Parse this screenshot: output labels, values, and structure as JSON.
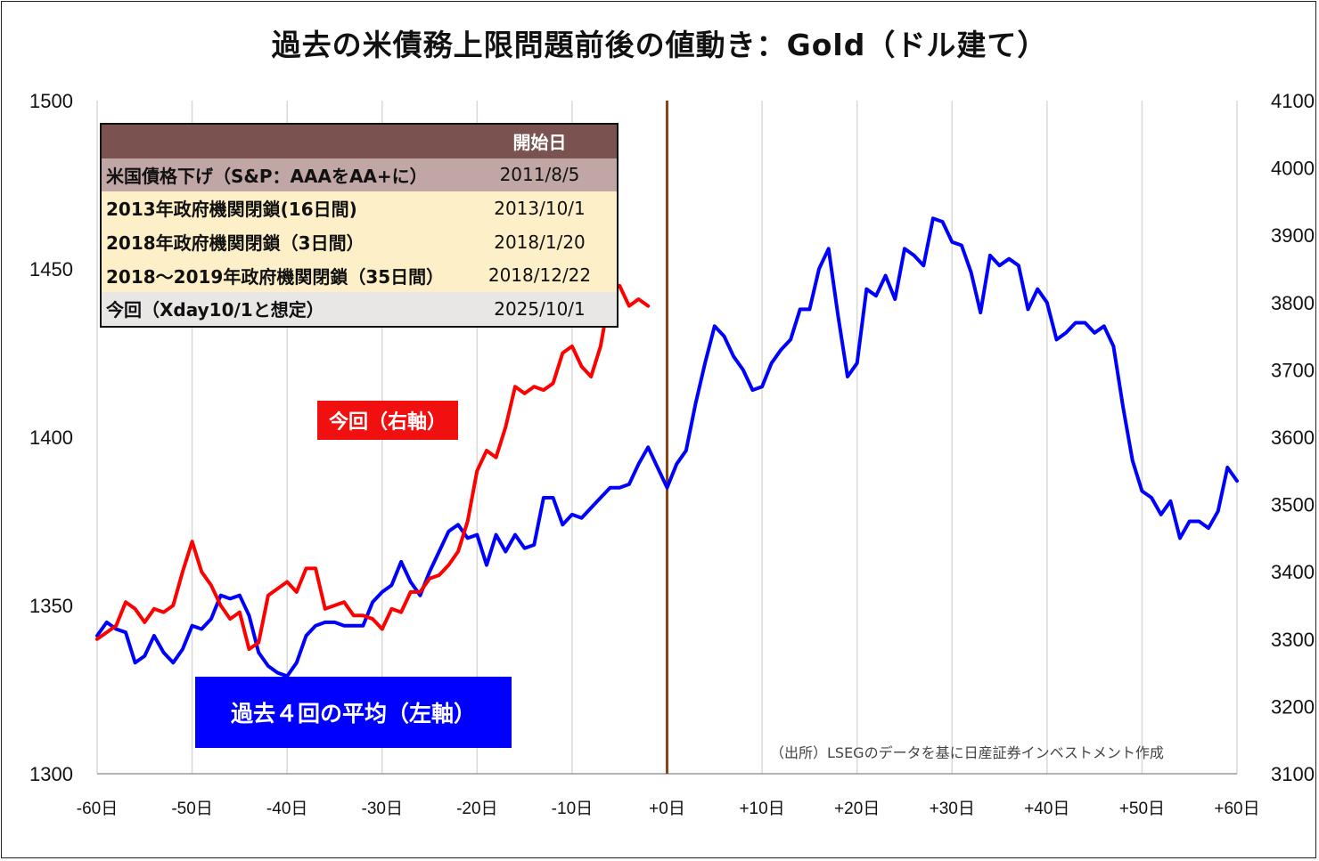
{
  "title": "過去の米債務上限問題前後の値動き：Gold（ドル建て）",
  "source": "（出所）LSEGのデータを基に日産証券インベストメント作成",
  "table": {
    "header": [
      "",
      "開始日"
    ],
    "rows": [
      {
        "event": "米国債格下げ（S&P：AAAをAA+に）",
        "date": "2011/8/5"
      },
      {
        "event": "2013年政府機関閉鎖(16日間)",
        "date": "2013/10/1"
      },
      {
        "event": "2018年政府機関閉鎖（3日間）",
        "date": "2018/1/20"
      },
      {
        "event": "2018～2019年政府機関閉鎖（35日間）",
        "date": "2018/12/22"
      },
      {
        "event": "今回（Xday10/1と想定）",
        "date": "2025/10/1"
      }
    ]
  },
  "labels": {
    "current": "今回（右軸）",
    "past": "過去４回の平均（左軸）"
  },
  "colors": {
    "current": "#ff0000",
    "past": "#0000ff",
    "vline": "#8b4513",
    "grid": "#d9d9d9"
  },
  "chart_data": {
    "type": "line",
    "x_ticks": [
      "-60日",
      "-50日",
      "-40日",
      "-30日",
      "-20日",
      "-10日",
      "+0日",
      "+10日",
      "+20日",
      "+30日",
      "+40日",
      "+50日",
      "+60日"
    ],
    "xlim": [
      -60,
      60
    ],
    "y_left": {
      "ticks": [
        "1300",
        "1350",
        "1400",
        "1450",
        "1500"
      ],
      "lim": [
        1300,
        1500
      ]
    },
    "y_right": {
      "ticks": [
        "3100",
        "3200",
        "3300",
        "3400",
        "3500",
        "3600",
        "3700",
        "3800",
        "3900",
        "4000",
        "4100"
      ],
      "lim": [
        3100,
        4100
      ]
    },
    "vertical_line_x": 0,
    "grid": "vertical",
    "series": [
      {
        "name": "過去４回の平均（左軸）",
        "axis": "left",
        "x_start": -60,
        "values": [
          1341,
          1345,
          1343,
          1342,
          1333,
          1335,
          1341,
          1336,
          1333,
          1337,
          1344,
          1343,
          1346,
          1353,
          1352,
          1353,
          1347,
          1336,
          1332,
          1330,
          1329,
          1333,
          1341,
          1344,
          1345,
          1345,
          1344,
          1344,
          1344,
          1351,
          1354,
          1356,
          1363,
          1357,
          1353,
          1360,
          1366,
          1372,
          1374,
          1370,
          1371,
          1362,
          1371,
          1366,
          1371,
          1367,
          1368,
          1382,
          1382,
          1374,
          1377,
          1376,
          1379,
          1382,
          1385,
          1385,
          1386,
          1392,
          1397,
          1391,
          1385,
          1392,
          1396,
          1410,
          1422,
          1433,
          1430,
          1424,
          1420,
          1414,
          1415,
          1422,
          1426,
          1429,
          1438,
          1438,
          1450,
          1456,
          1436,
          1418,
          1422,
          1444,
          1442,
          1448,
          1441,
          1456,
          1454,
          1451,
          1465,
          1464,
          1458,
          1457,
          1449,
          1437,
          1454,
          1451,
          1453,
          1451,
          1438,
          1444,
          1440,
          1429,
          1431,
          1434,
          1434,
          1431,
          1433,
          1427,
          1409,
          1393,
          1384,
          1382,
          1377,
          1381,
          1370,
          1375,
          1375,
          1373,
          1378,
          1391,
          1387
        ]
      },
      {
        "name": "今回（右軸）",
        "axis": "right",
        "x_start": -60,
        "values": [
          3300,
          3310,
          3320,
          3355,
          3345,
          3325,
          3345,
          3340,
          3350,
          3400,
          3445,
          3400,
          3380,
          3350,
          3330,
          3340,
          3285,
          3295,
          3365,
          3375,
          3385,
          3370,
          3405,
          3405,
          3345,
          3350,
          3355,
          3335,
          3335,
          3330,
          3315,
          3345,
          3340,
          3370,
          3370,
          3390,
          3395,
          3410,
          3430,
          3475,
          3550,
          3580,
          3570,
          3615,
          3675,
          3665,
          3675,
          3670,
          3680,
          3725,
          3735,
          3705,
          3690,
          3735,
          3815,
          3825,
          3795,
          3805,
          3795
        ]
      }
    ]
  }
}
